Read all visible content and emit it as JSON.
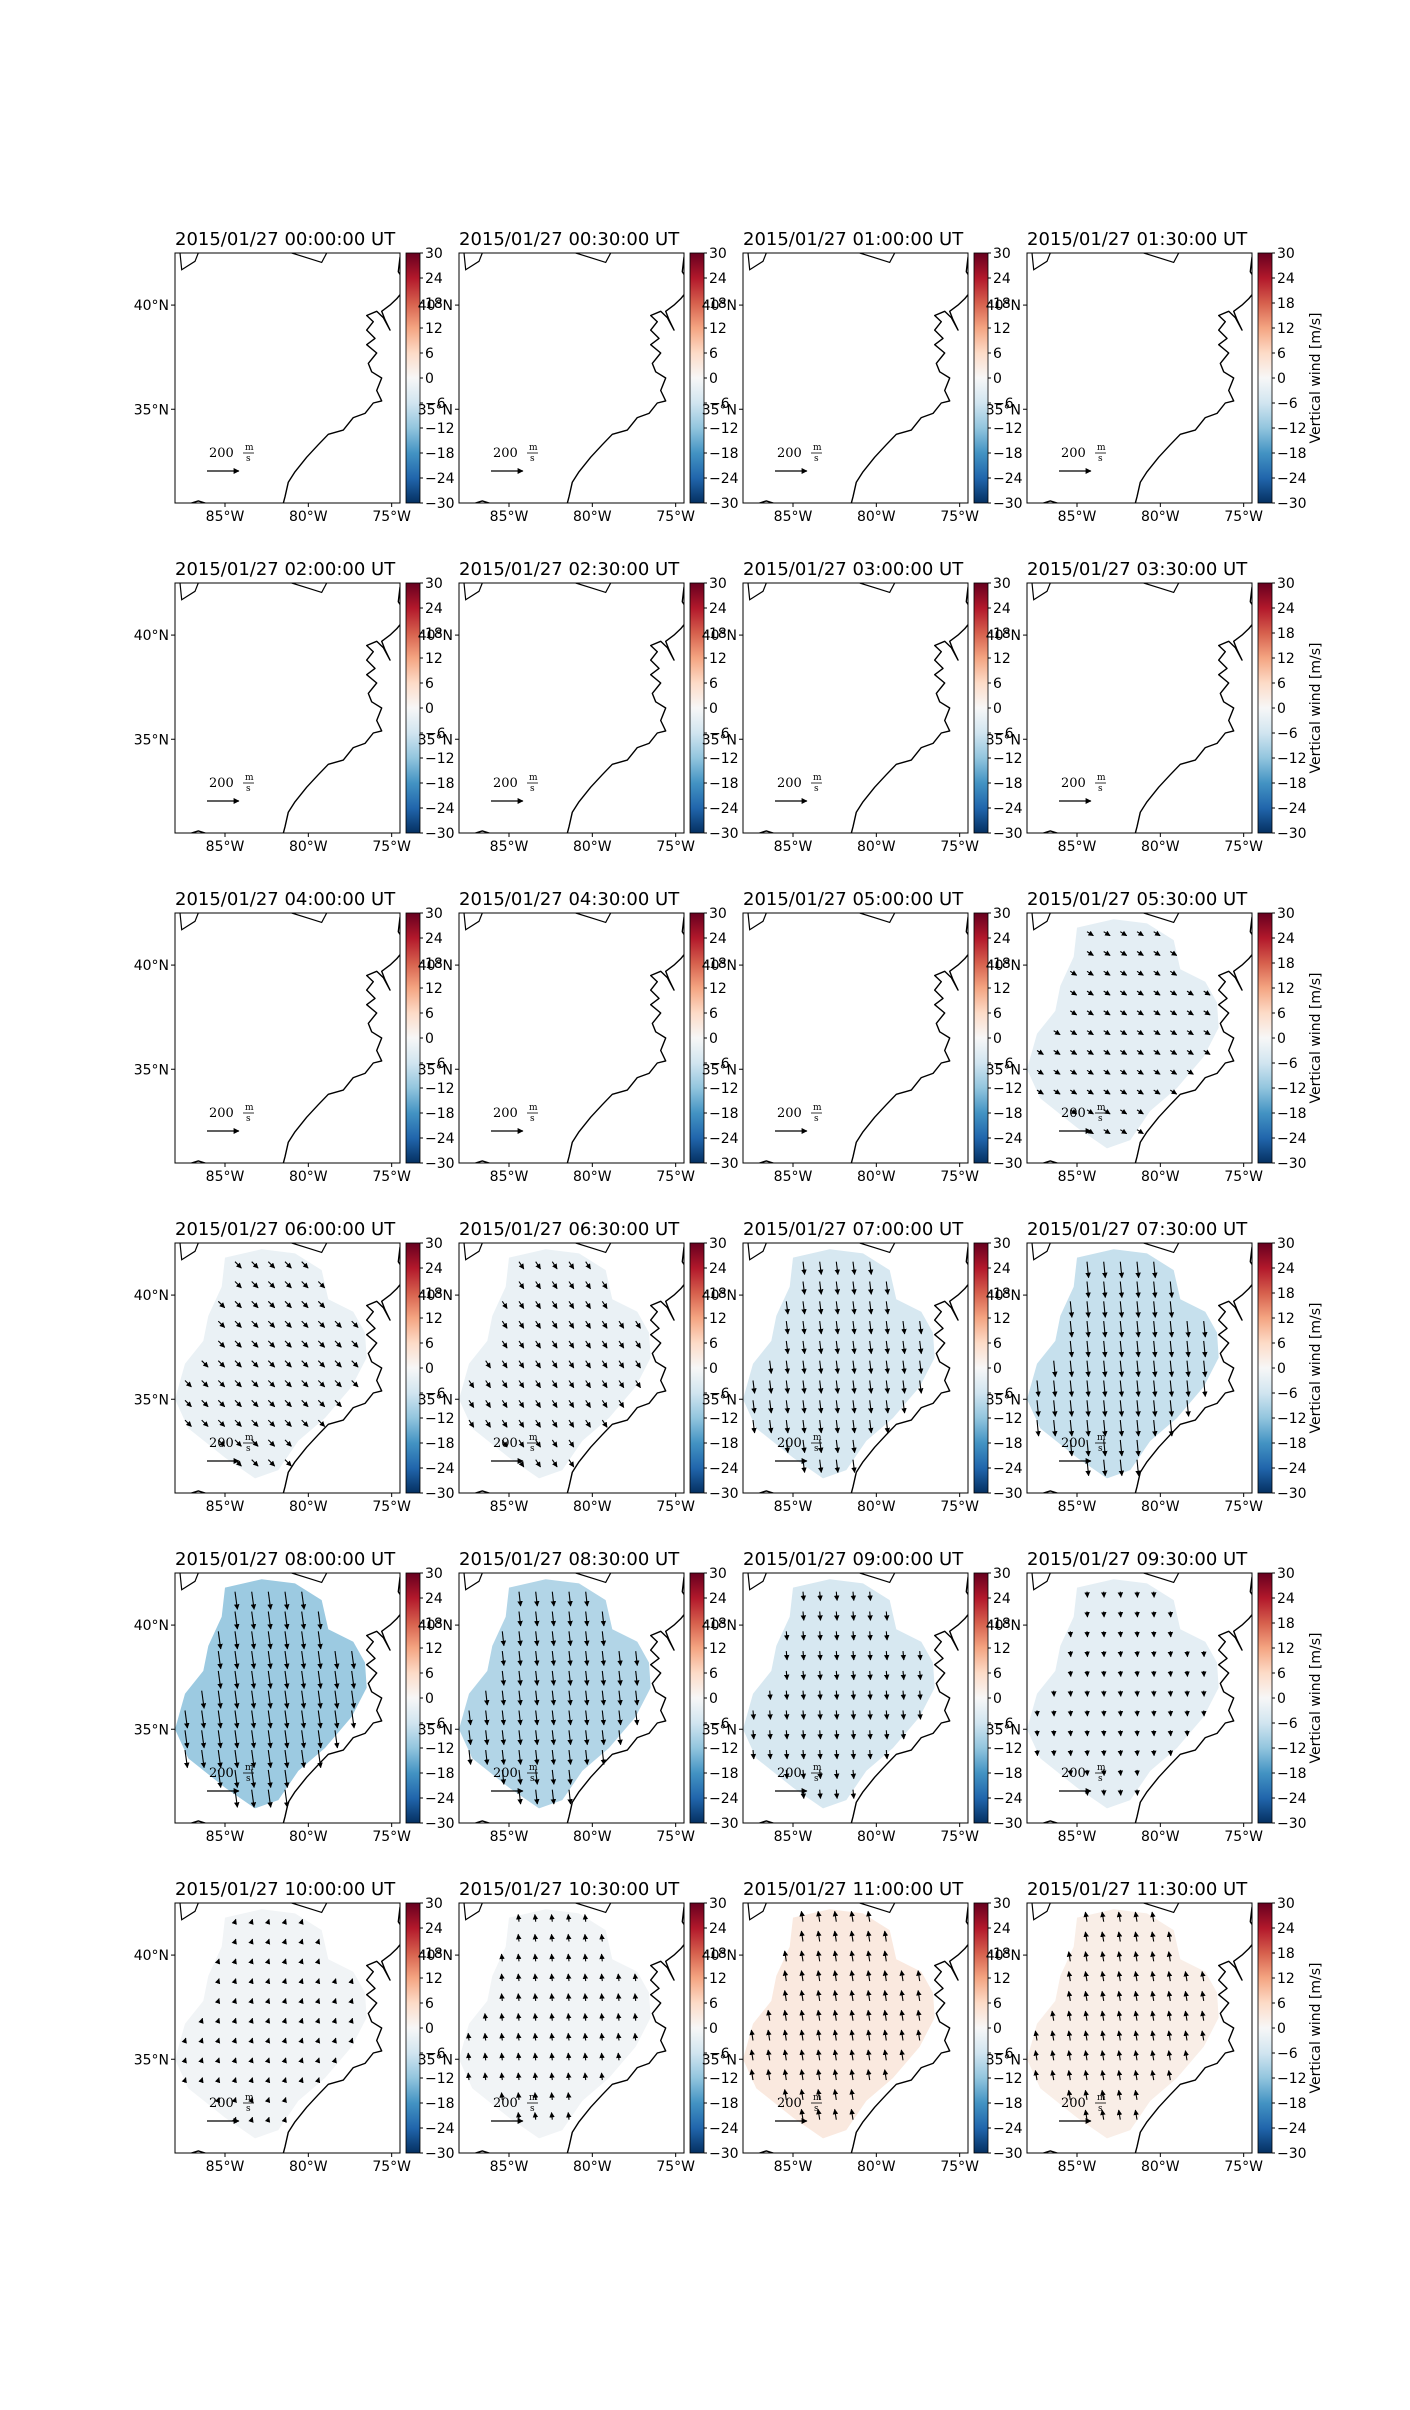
{
  "figure": {
    "colorbar_label": "Vertical wind [m/s]",
    "colorbar_ticks": [
      "30",
      "24",
      "18",
      "12",
      "6",
      "0",
      "−6",
      "−12",
      "−18",
      "−24",
      "−30"
    ],
    "colorbar_range": [
      -30,
      30
    ],
    "colormap": [
      "#67001f",
      "#b2182b",
      "#d6604d",
      "#f4a582",
      "#fddbc7",
      "#f7f7f7",
      "#d1e5f0",
      "#92c5de",
      "#4393c3",
      "#2166ac",
      "#053061"
    ],
    "lon_ticks": [
      "85°W",
      "80°W",
      "75°W"
    ],
    "lat_ticks": [
      "40°N",
      "35°N"
    ],
    "quiver_key_value": "200",
    "quiver_key_unit": "m/s",
    "quiver_key_unit_num": "m",
    "quiver_key_unit_den": "s",
    "domain_color": "#e8eef3"
  },
  "chart_data": {
    "type": "heatmap",
    "title": "",
    "variable": "Vertical wind",
    "units": "m/s",
    "lon_range": [
      -88,
      -74.5
    ],
    "lat_range": [
      30.5,
      42.5
    ],
    "layout": {
      "rows": 6,
      "cols": 4
    },
    "panels": [
      {
        "time": "2015/01/27 00:00:00 UT",
        "data": false,
        "value": null,
        "u": 0,
        "v": 0
      },
      {
        "time": "2015/01/27 00:30:00 UT",
        "data": false,
        "value": null,
        "u": 0,
        "v": 0
      },
      {
        "time": "2015/01/27 01:00:00 UT",
        "data": false,
        "value": null,
        "u": 0,
        "v": 0
      },
      {
        "time": "2015/01/27 01:30:00 UT",
        "data": false,
        "value": null,
        "u": 0,
        "v": 0
      },
      {
        "time": "2015/01/27 02:00:00 UT",
        "data": false,
        "value": null,
        "u": 0,
        "v": 0
      },
      {
        "time": "2015/01/27 02:30:00 UT",
        "data": false,
        "value": null,
        "u": 0,
        "v": 0
      },
      {
        "time": "2015/01/27 03:00:00 UT",
        "data": false,
        "value": null,
        "u": 0,
        "v": 0
      },
      {
        "time": "2015/01/27 03:30:00 UT",
        "data": false,
        "value": null,
        "u": 0,
        "v": 0
      },
      {
        "time": "2015/01/27 04:00:00 UT",
        "data": false,
        "value": null,
        "u": 0,
        "v": 0
      },
      {
        "time": "2015/01/27 04:30:00 UT",
        "data": false,
        "value": null,
        "u": 0,
        "v": 0
      },
      {
        "time": "2015/01/27 05:00:00 UT",
        "data": false,
        "value": null,
        "u": 0,
        "v": 0
      },
      {
        "time": "2015/01/27 05:30:00 UT",
        "data": true,
        "value": -3,
        "u": 40,
        "v": -25
      },
      {
        "time": "2015/01/27 06:00:00 UT",
        "data": true,
        "value": -2,
        "u": 40,
        "v": -40
      },
      {
        "time": "2015/01/27 06:30:00 UT",
        "data": true,
        "value": -2,
        "u": 30,
        "v": -45
      },
      {
        "time": "2015/01/27 07:00:00 UT",
        "data": true,
        "value": -5,
        "u": 10,
        "v": -80
      },
      {
        "time": "2015/01/27 07:30:00 UT",
        "data": true,
        "value": -7,
        "u": 10,
        "v": -100
      },
      {
        "time": "2015/01/27 08:00:00 UT",
        "data": true,
        "value": -11,
        "u": 15,
        "v": -110
      },
      {
        "time": "2015/01/27 08:30:00 UT",
        "data": true,
        "value": -9,
        "u": 10,
        "v": -90
      },
      {
        "time": "2015/01/27 09:00:00 UT",
        "data": true,
        "value": -5,
        "u": 5,
        "v": -55
      },
      {
        "time": "2015/01/27 09:30:00 UT",
        "data": true,
        "value": -3,
        "u": 3,
        "v": -35
      },
      {
        "time": "2015/01/27 10:00:00 UT",
        "data": true,
        "value": -1,
        "u": 5,
        "v": 15
      },
      {
        "time": "2015/01/27 10:30:00 UT",
        "data": true,
        "value": -1,
        "u": -5,
        "v": 45
      },
      {
        "time": "2015/01/27 11:00:00 UT",
        "data": true,
        "value": 3,
        "u": -10,
        "v": 65
      },
      {
        "time": "2015/01/27 11:30:00 UT",
        "data": true,
        "value": 2,
        "u": -10,
        "v": 60
      }
    ]
  }
}
